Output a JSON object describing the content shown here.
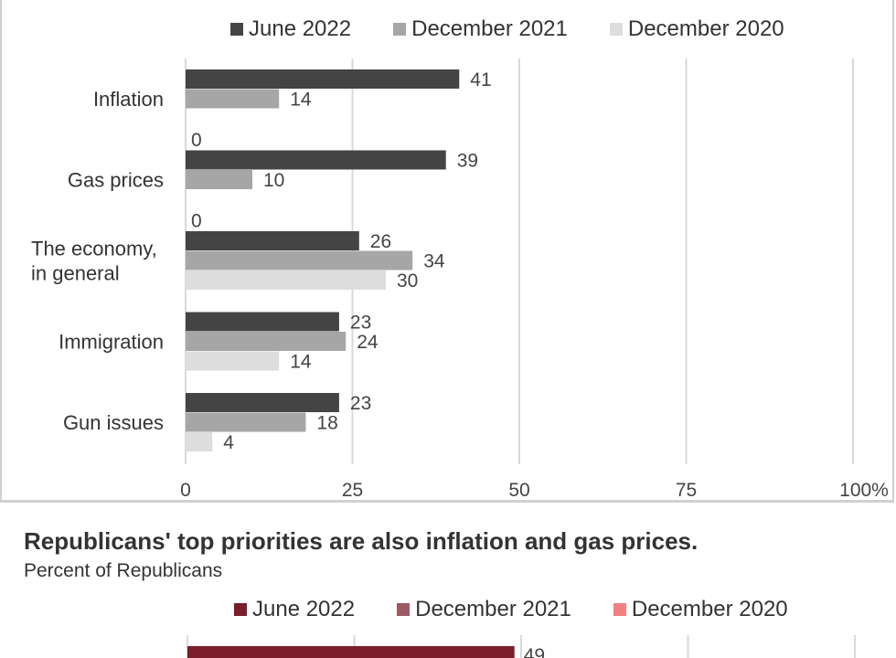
{
  "chart_data": [
    {
      "type": "bar",
      "orientation": "horizontal",
      "categories": [
        "Inflation",
        "Gas prices",
        "The economy,\nin general",
        "Immigration",
        "Gun issues"
      ],
      "series": [
        {
          "name": "June 2022",
          "color": "#444444",
          "values": [
            41,
            39,
            26,
            23,
            23
          ]
        },
        {
          "name": "December 2021",
          "color": "#a6a6a6",
          "values": [
            14,
            10,
            34,
            24,
            18
          ]
        },
        {
          "name": "December 2020",
          "color": "#dddddd",
          "values": [
            0,
            0,
            30,
            14,
            4
          ]
        }
      ],
      "xlim": [
        0,
        100
      ],
      "xticks": [
        "0",
        "25",
        "50",
        "75",
        "100%"
      ],
      "grid": true,
      "legend": "top"
    },
    {
      "type": "bar",
      "orientation": "horizontal",
      "title": "Republicans' top priorities are also inflation and gas prices.",
      "subtitle": "Percent of Republicans",
      "series": [
        {
          "name": "June 2022",
          "color": "#7b1e2b",
          "values": [
            49
          ]
        },
        {
          "name": "December 2021",
          "color": "#9c5a64",
          "values": []
        },
        {
          "name": "December 2020",
          "color": "#f08080",
          "values": []
        }
      ],
      "xlim": [
        0,
        100
      ],
      "grid": true,
      "legend": "top"
    }
  ]
}
